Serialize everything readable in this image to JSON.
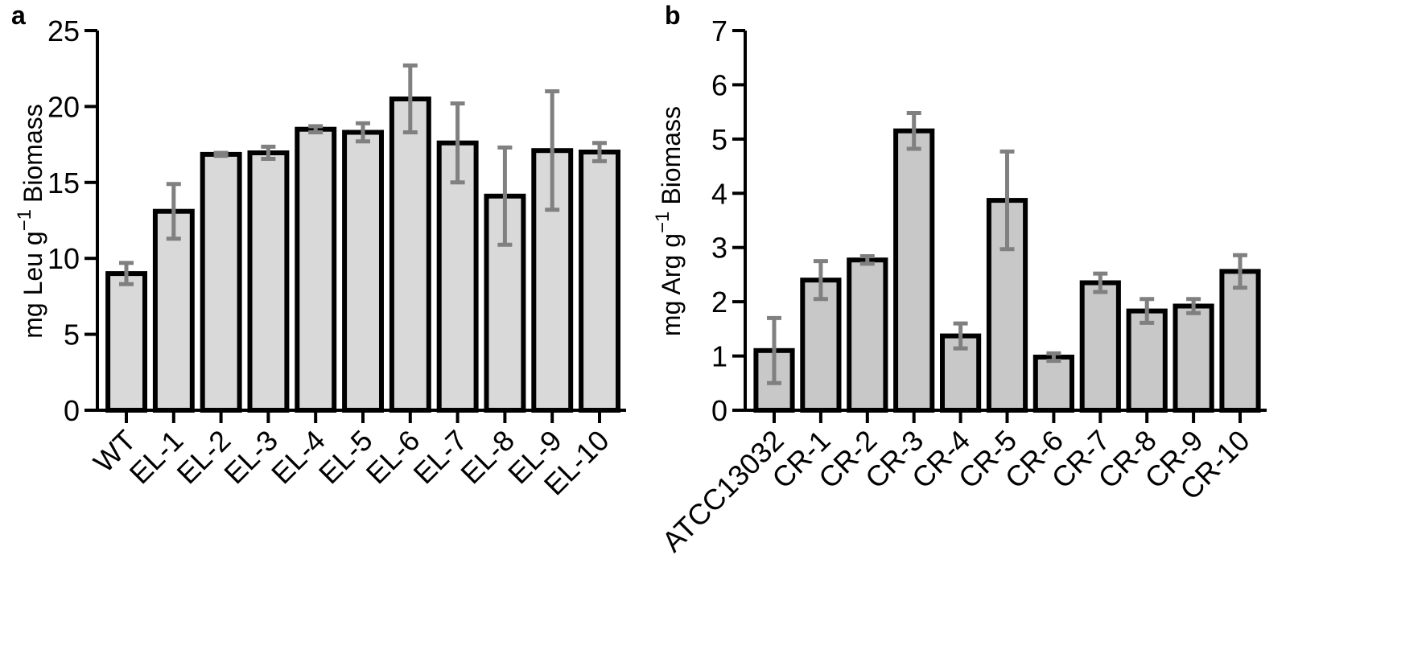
{
  "chart_data": [
    {
      "type": "bar",
      "panel": "a",
      "title": "",
      "xlabel": "",
      "ylabel": "mg Leu g",
      "ylabel_sup": "−1",
      "ylabel_tail": "Biomass",
      "categories": [
        "WT",
        "EL-1",
        "EL-2",
        "EL-3",
        "EL-4",
        "EL-5",
        "EL-6",
        "EL-7",
        "EL-8",
        "EL-9",
        "EL-10"
      ],
      "values": [
        9.0,
        13.1,
        16.85,
        16.95,
        18.5,
        18.3,
        20.5,
        17.6,
        14.1,
        17.1,
        17.0
      ],
      "errors": [
        0.7,
        1.8,
        0.1,
        0.4,
        0.2,
        0.6,
        2.2,
        2.6,
        3.2,
        3.9,
        0.6
      ],
      "ylim": [
        0,
        25
      ],
      "yticks": [
        0,
        5,
        10,
        15,
        20,
        25
      ],
      "ytick_labels": [
        "0",
        "5",
        "10",
        "15",
        "20",
        "25"
      ],
      "grid": false,
      "bar_color": "#d9d9d9",
      "error_color": "#808080"
    },
    {
      "type": "bar",
      "panel": "b",
      "title": "",
      "xlabel": "",
      "ylabel": "mg Arg g",
      "ylabel_sup": "−1",
      "ylabel_tail": "Biomass",
      "categories": [
        "ATCC13032",
        "CR-1",
        "CR-2",
        "CR-3",
        "CR-4",
        "CR-5",
        "CR-6",
        "CR-7",
        "CR-8",
        "CR-9",
        "CR-10"
      ],
      "values": [
        1.1,
        2.4,
        2.77,
        5.15,
        1.37,
        3.87,
        0.98,
        2.35,
        1.83,
        1.92,
        2.56
      ],
      "errors": [
        0.6,
        0.35,
        0.07,
        0.33,
        0.23,
        0.9,
        0.07,
        0.17,
        0.22,
        0.13,
        0.3
      ],
      "ylim": [
        0,
        7
      ],
      "yticks": [
        0,
        1,
        2,
        3,
        4,
        5,
        6,
        7
      ],
      "ytick_labels": [
        "0",
        "1",
        "2",
        "3",
        "4",
        "5",
        "6",
        "7"
      ],
      "grid": false,
      "bar_color": "#c8c8c8",
      "error_color": "#808080"
    }
  ]
}
